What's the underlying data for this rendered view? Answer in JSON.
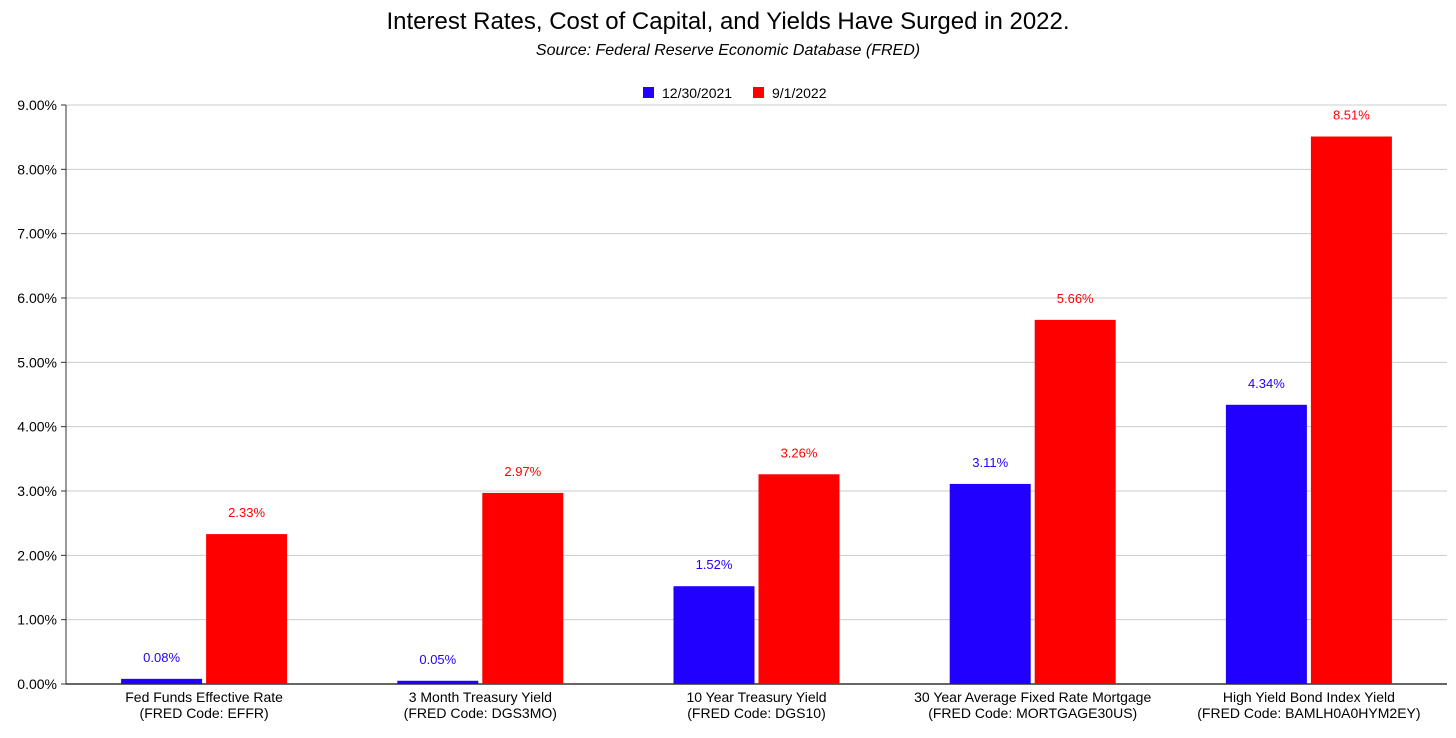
{
  "chart_data": {
    "type": "bar",
    "title": "Interest Rates, Cost of Capital, and Yields Have Surged in 2022.",
    "subtitle": "Source: Federal Reserve Economic Database (FRED)",
    "categories": [
      [
        "Fed Funds Effective Rate",
        "(FRED Code: EFFR)"
      ],
      [
        "3 Month Treasury Yield",
        "(FRED Code: DGS3MO)"
      ],
      [
        "10 Year Treasury Yield",
        "(FRED Code: DGS10)"
      ],
      [
        "30 Year Average Fixed Rate Mortgage",
        "(FRED Code: MORTGAGE30US)"
      ],
      [
        "High Yield Bond Index Yield",
        "(FRED Code: BAMLH0A0HYM2EY)"
      ]
    ],
    "series": [
      {
        "name": "12/30/2021",
        "color": "#2200ff",
        "values": [
          0.08,
          0.05,
          1.52,
          3.11,
          4.34
        ],
        "labels": [
          "0.08%",
          "0.05%",
          "1.52%",
          "3.11%",
          "4.34%"
        ]
      },
      {
        "name": "9/1/2022",
        "color": "#ff0000",
        "values": [
          2.33,
          2.97,
          3.26,
          5.66,
          8.51
        ],
        "labels": [
          "2.33%",
          "2.97%",
          "3.26%",
          "5.66%",
          "8.51%"
        ]
      }
    ],
    "ylim": [
      0,
      9
    ],
    "yticks": [
      "0.00%",
      "1.00%",
      "2.00%",
      "3.00%",
      "4.00%",
      "5.00%",
      "6.00%",
      "7.00%",
      "8.00%",
      "9.00%"
    ],
    "grid": true,
    "legend_position": "top-center"
  }
}
